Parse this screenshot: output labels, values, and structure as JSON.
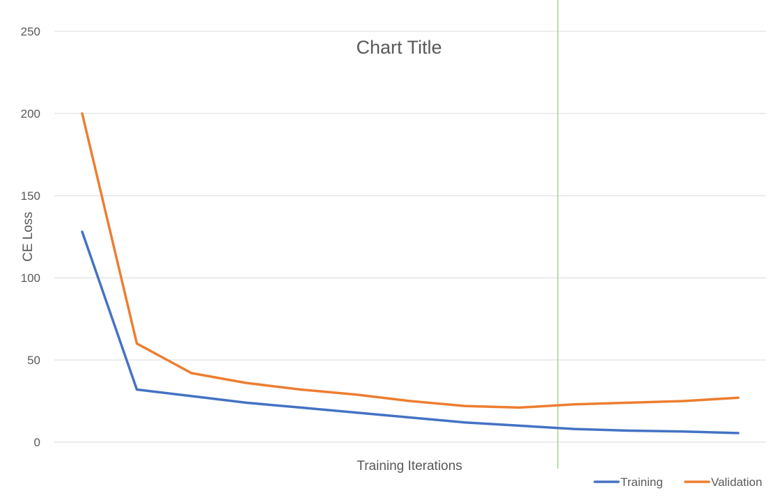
{
  "chart_data": {
    "type": "line",
    "title": "Chart Title",
    "xlabel": "Training Iterations",
    "ylabel": "CE Loss",
    "ylim": [
      0,
      250
    ],
    "yticks": [
      0,
      50,
      100,
      150,
      200,
      250
    ],
    "grid": true,
    "legend_position": "bottom-right",
    "x": [
      1,
      2,
      3,
      4,
      5,
      6,
      7,
      8,
      9,
      10,
      11,
      12,
      13
    ],
    "reference_line": {
      "x": 9.7,
      "color": "#A9D18E"
    },
    "series": [
      {
        "name": "Training",
        "color": "#4472C4",
        "values": [
          128,
          32,
          28,
          24,
          21,
          18,
          15,
          12,
          10,
          8,
          7,
          6.5,
          5.5
        ]
      },
      {
        "name": "Validation",
        "color": "#ED7D31",
        "values": [
          200,
          60,
          42,
          36,
          32,
          29,
          25,
          22,
          21,
          23,
          24,
          25,
          27
        ]
      }
    ]
  }
}
